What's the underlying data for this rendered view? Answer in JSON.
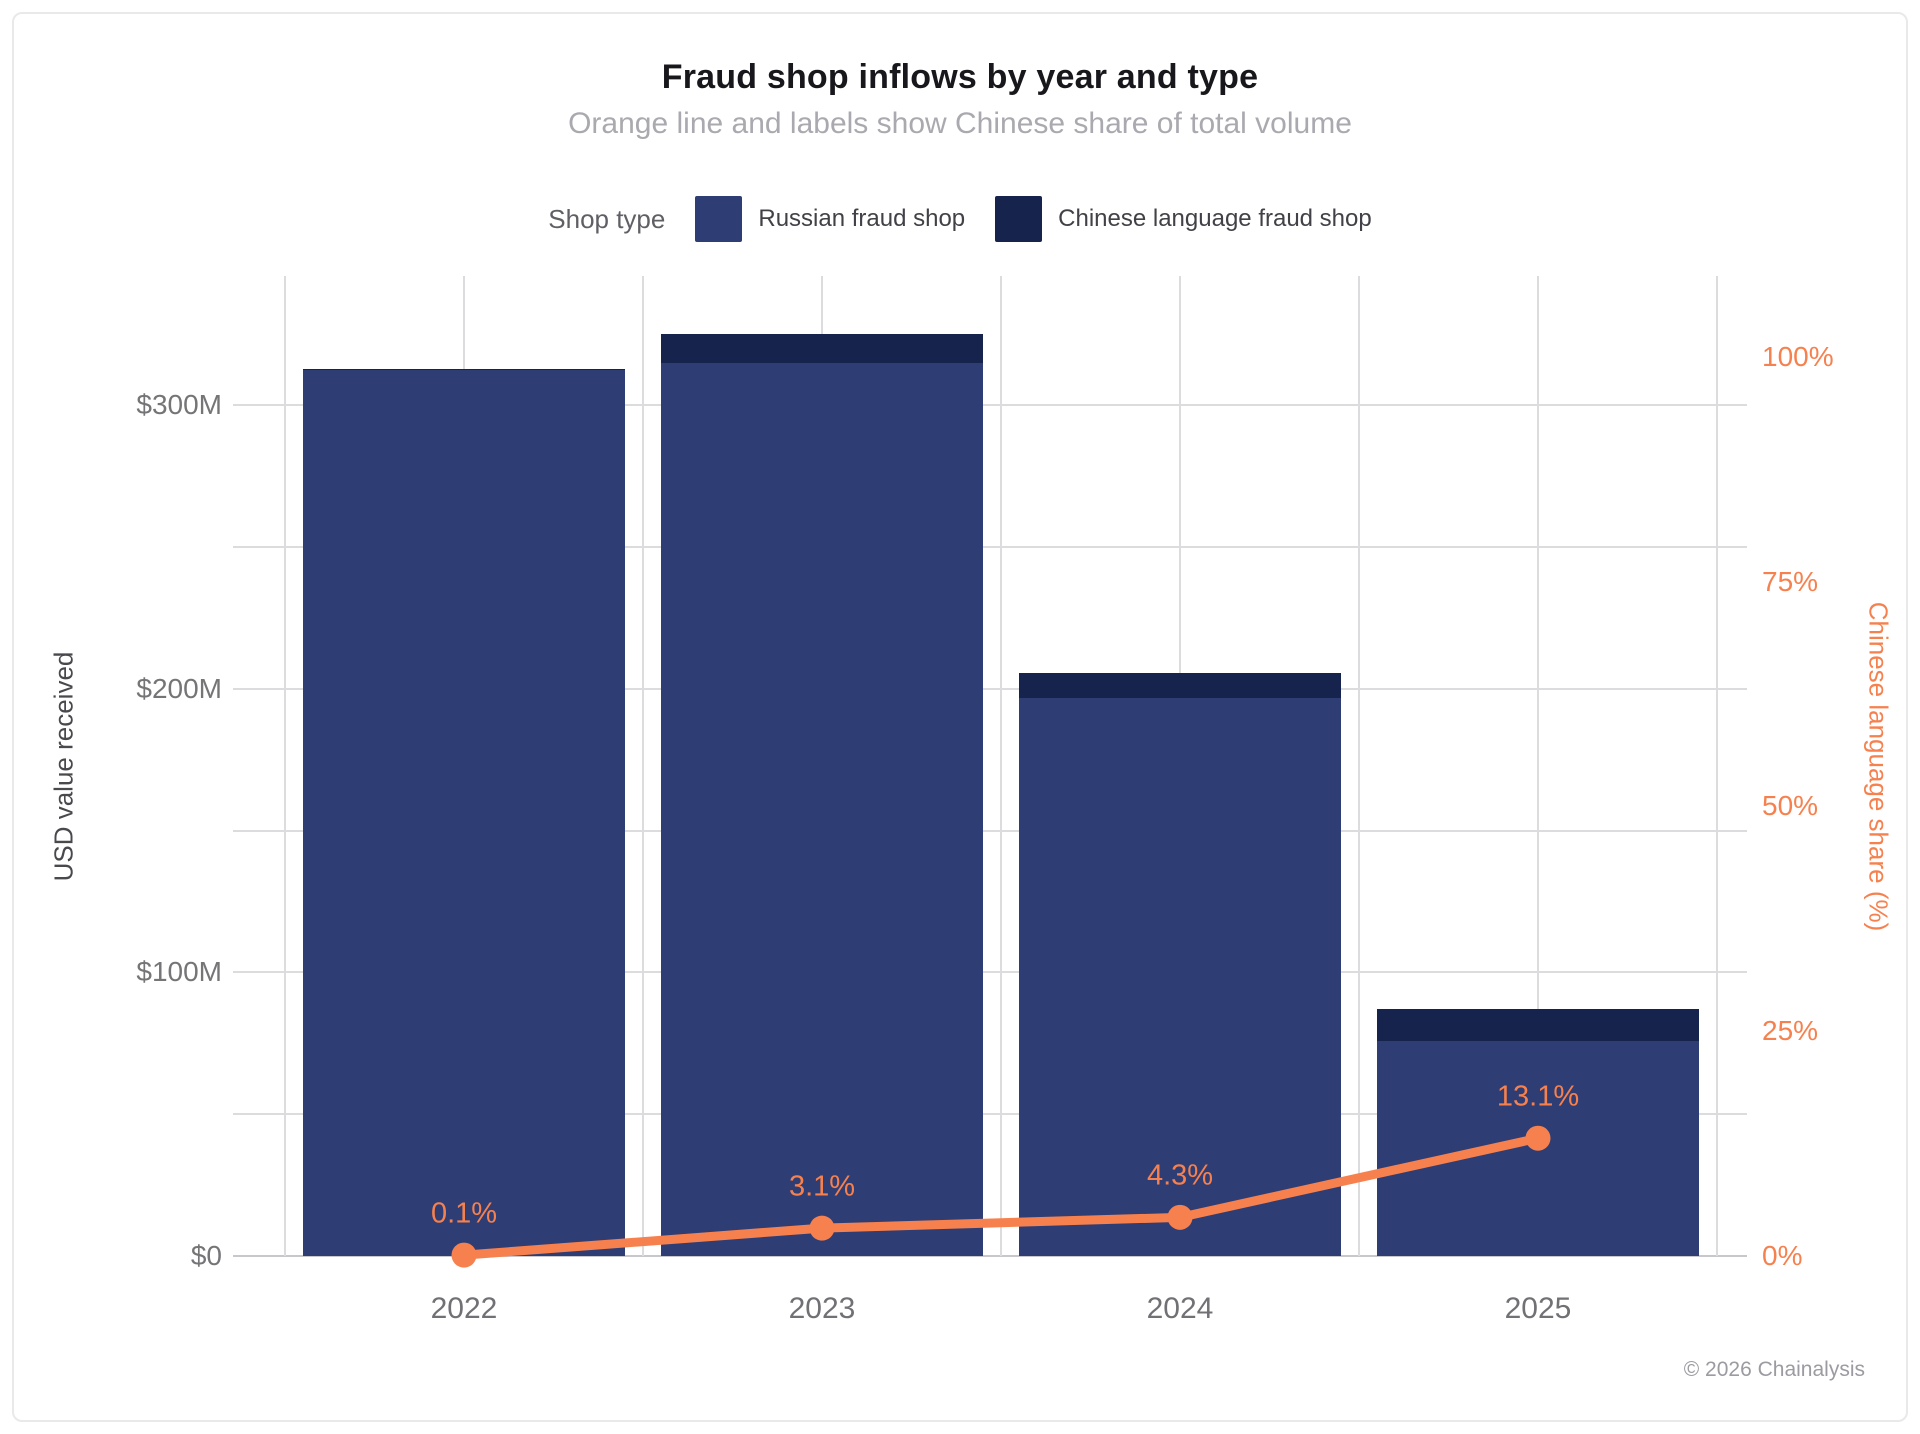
{
  "header": {
    "title": "Fraud shop inflows by year and type",
    "subtitle": "Orange line and labels show Chinese share of total volume"
  },
  "legend": {
    "label": "Shop type",
    "items": [
      {
        "label": "Russian fraud shop",
        "color": "#2E3D74"
      },
      {
        "label": "Chinese language fraud shop",
        "color": "#15234D"
      }
    ]
  },
  "chart_data": {
    "type": "bar",
    "subtype": "stacked-bars-with-percent-line",
    "title": "Fraud shop inflows by year and type",
    "subtitle": "Orange line and labels show Chinese share of total volume",
    "categories": [
      "2022",
      "2023",
      "2024",
      "2025"
    ],
    "series": [
      {
        "name": "Russian fraud shop",
        "unit": "USD millions",
        "color": "#2E3D74",
        "values": [
          312.4,
          314.9,
          196.8,
          75.7
        ]
      },
      {
        "name": "Chinese language fraud shop",
        "unit": "USD millions",
        "color": "#15234D",
        "values": [
          0.4,
          10.1,
          8.8,
          11.4
        ]
      }
    ],
    "line_series": {
      "name": "Chinese share of total volume",
      "unit": "%",
      "color": "#F6814E",
      "values": [
        0.1,
        3.1,
        4.3,
        13.1
      ],
      "labels": [
        "0.1%",
        "3.1%",
        "4.3%",
        "13.1%"
      ]
    },
    "left_axis": {
      "label": "USD value received",
      "max": 345.5,
      "gridline_step": 50,
      "ticks": [
        {
          "value": 0,
          "label": "$0"
        },
        {
          "value": 100,
          "label": "$100M"
        },
        {
          "value": 200,
          "label": "$200M"
        },
        {
          "value": 300,
          "label": "$300M"
        }
      ]
    },
    "right_axis": {
      "label": "Chinese language share (%)",
      "max": 109,
      "ticks": [
        {
          "value": 0,
          "label": "0%"
        },
        {
          "value": 25,
          "label": "25%"
        },
        {
          "value": 50,
          "label": "50%"
        },
        {
          "value": 75,
          "label": "75%"
        },
        {
          "value": 100,
          "label": "100%"
        }
      ]
    },
    "grid": true,
    "legend_position": "top",
    "stacked": true
  },
  "colors": {
    "russian_bar": "#2E3D74",
    "chinese_bar": "#15234D",
    "orange": "#F6814E",
    "grid": "#DCDCDF",
    "baseline": "#C7C7CC",
    "tick_text": "#757578"
  },
  "footer": {
    "copyright": "© 2026 Chainalysis"
  }
}
